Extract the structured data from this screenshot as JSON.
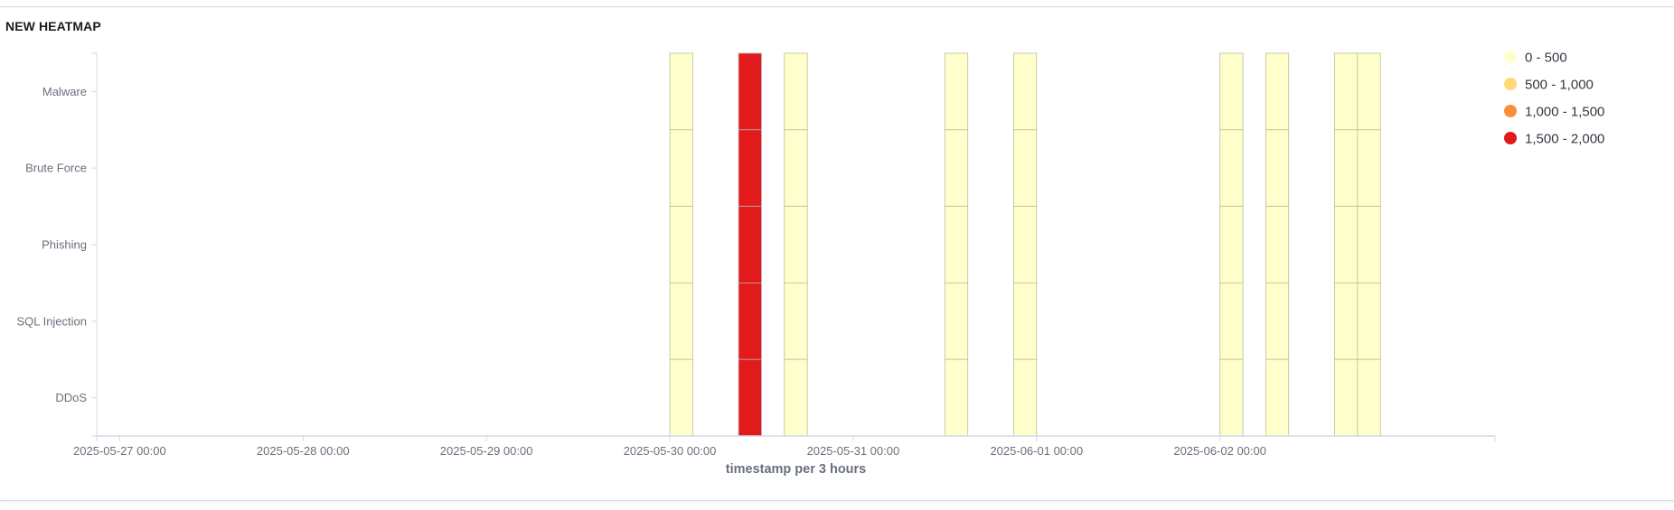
{
  "panel": {
    "title": "NEW HEATMAP"
  },
  "chart_data": {
    "type": "heatmap",
    "title": "NEW HEATMAP",
    "xlabel": "timestamp per 3 hours",
    "ylabel": "",
    "categories_y": [
      "Malware",
      "Brute Force",
      "Phishing",
      "SQL Injection",
      "DDoS"
    ],
    "x_range": [
      "2025-05-26 21:00",
      "2025-06-03 12:00"
    ],
    "x_ticks": [
      "2025-05-27 00:00",
      "2025-05-28 00:00",
      "2025-05-29 00:00",
      "2025-05-30 00:00",
      "2025-05-31 00:00",
      "2025-06-01 00:00",
      "2025-06-02 00:00"
    ],
    "legend": [
      {
        "label": "0 - 500",
        "color": "#ffffcc"
      },
      {
        "label": "500 - 1,000",
        "color": "#fed976"
      },
      {
        "label": "1,000 - 1,500",
        "color": "#fd8d3c"
      },
      {
        "label": "1,500 - 2,000",
        "color": "#e31a1c"
      }
    ],
    "legend_position": "right",
    "grid": false,
    "cells": [
      {
        "x": "2025-05-30 00:00",
        "range": "0 - 500"
      },
      {
        "x": "2025-05-30 09:00",
        "range": "1,500 - 2,000"
      },
      {
        "x": "2025-05-30 15:00",
        "range": "0 - 500"
      },
      {
        "x": "2025-05-31 12:00",
        "range": "0 - 500"
      },
      {
        "x": "2025-05-31 21:00",
        "range": "0 - 500"
      },
      {
        "x": "2025-06-02 00:00",
        "range": "0 - 500"
      },
      {
        "x": "2025-06-02 06:00",
        "range": "0 - 500"
      },
      {
        "x": "2025-06-02 15:00",
        "range": "0 - 500"
      },
      {
        "x": "2025-06-02 18:00",
        "range": "0 - 500"
      }
    ]
  }
}
